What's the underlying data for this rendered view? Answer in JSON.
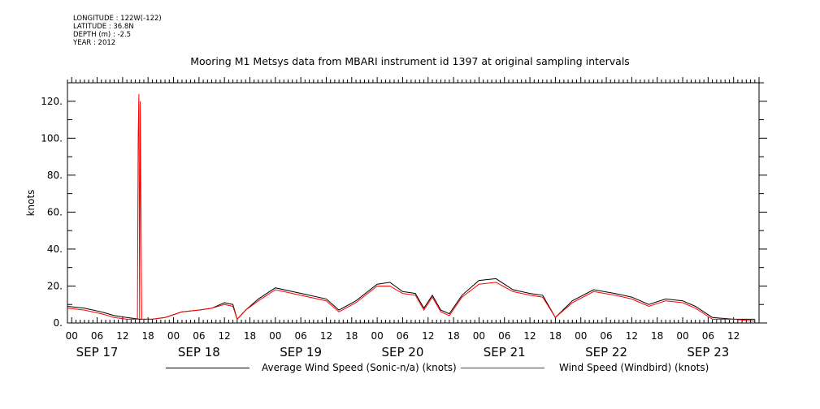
{
  "meta": {
    "longitude": "LONGITUDE : 122W(-122)",
    "latitude": "LATITUDE : 36.8N",
    "depth": "DEPTH (m) : -2.5",
    "year": "YEAR : 2012"
  },
  "colors": {
    "average": "#000000",
    "windbird": "#ff0000"
  },
  "chart_data": {
    "type": "line",
    "title": "Mooring M1 Metsys data from MBARI instrument id 1397 at original sampling intervals",
    "ylabel": "knots",
    "xlabel": "",
    "ylim": [
      0,
      130
    ],
    "xlim": [
      "2012-09-16T23:00",
      "2012-09-23T18:00"
    ],
    "yticks": [
      0,
      20,
      40,
      60,
      80,
      100,
      120
    ],
    "ytick_labels": [
      "0.",
      "20.",
      "40.",
      "60.",
      "80.",
      "100.",
      "120."
    ],
    "hour_labels": [
      "00",
      "06",
      "12",
      "18",
      "00",
      "06",
      "12",
      "18",
      "00",
      "06",
      "12",
      "18",
      "00",
      "06",
      "12",
      "18",
      "00",
      "06",
      "12",
      "18",
      "00",
      "06",
      "12",
      "18",
      "00",
      "06",
      "12"
    ],
    "day_labels": [
      "SEP 17",
      "SEP 18",
      "SEP 19",
      "SEP 20",
      "SEP 21",
      "SEP 22",
      "SEP 23"
    ],
    "grid": false,
    "legend_position": "bottom",
    "series": [
      {
        "name": "Average Wind Speed (Sonic-n/a) (knots)",
        "x": [
          "2012-09-16T23:00",
          "2012-09-17T03:00",
          "2012-09-17T07:00",
          "2012-09-17T10:00",
          "2012-09-17T13:00",
          "2012-09-17T16:00",
          "2012-09-17T19:00",
          "2012-09-17T22:00",
          "2012-09-18T02:00",
          "2012-09-18T06:00",
          "2012-09-18T09:00",
          "2012-09-18T12:00",
          "2012-09-18T14:00",
          "2012-09-18T15:00",
          "2012-09-18T17:00",
          "2012-09-18T20:00",
          "2012-09-19T00:00",
          "2012-09-19T04:00",
          "2012-09-19T08:00",
          "2012-09-19T12:00",
          "2012-09-19T15:00",
          "2012-09-19T19:00",
          "2012-09-20T00:00",
          "2012-09-20T03:00",
          "2012-09-20T06:00",
          "2012-09-20T09:00",
          "2012-09-20T11:00",
          "2012-09-20T13:00",
          "2012-09-20T15:00",
          "2012-09-20T17:00",
          "2012-09-20T20:00",
          "2012-09-21T00:00",
          "2012-09-21T04:00",
          "2012-09-21T08:00",
          "2012-09-21T12:00",
          "2012-09-21T15:00",
          "2012-09-21T18:00",
          "2012-09-21T22:00",
          "2012-09-22T03:00",
          "2012-09-22T08:00",
          "2012-09-22T12:00",
          "2012-09-22T16:00",
          "2012-09-22T20:00",
          "2012-09-23T00:00",
          "2012-09-23T03:00",
          "2012-09-23T07:00",
          "2012-09-23T12:00",
          "2012-09-23T17:00"
        ],
        "y": [
          9,
          8,
          6,
          4,
          3,
          2,
          2,
          3,
          6,
          7,
          8,
          11,
          10,
          2,
          7,
          13,
          19,
          17,
          15,
          13,
          7,
          12,
          21,
          22,
          17,
          16,
          8,
          15,
          7,
          5,
          15,
          23,
          24,
          18,
          16,
          15,
          3,
          12,
          18,
          16,
          14,
          10,
          13,
          12,
          9,
          3,
          2,
          2
        ]
      },
      {
        "name": "Wind Speed (Windbird) (knots)",
        "x": [
          "2012-09-16T23:00",
          "2012-09-17T03:00",
          "2012-09-17T07:00",
          "2012-09-17T10:00",
          "2012-09-17T13:00",
          "2012-09-17T15:30",
          "2012-09-17T15:40",
          "2012-09-17T15:50",
          "2012-09-17T16:00",
          "2012-09-17T16:10",
          "2012-09-17T16:30",
          "2012-09-17T19:00",
          "2012-09-17T22:00",
          "2012-09-18T02:00",
          "2012-09-18T06:00",
          "2012-09-18T09:00",
          "2012-09-18T12:00",
          "2012-09-18T14:00",
          "2012-09-18T15:00",
          "2012-09-18T17:00",
          "2012-09-18T20:00",
          "2012-09-19T00:00",
          "2012-09-19T04:00",
          "2012-09-19T08:00",
          "2012-09-19T12:00",
          "2012-09-19T15:00",
          "2012-09-19T19:00",
          "2012-09-20T00:00",
          "2012-09-20T03:00",
          "2012-09-20T06:00",
          "2012-09-20T09:00",
          "2012-09-20T11:00",
          "2012-09-20T13:00",
          "2012-09-20T15:00",
          "2012-09-20T17:00",
          "2012-09-20T20:00",
          "2012-09-21T00:00",
          "2012-09-21T04:00",
          "2012-09-21T08:00",
          "2012-09-21T12:00",
          "2012-09-21T15:00",
          "2012-09-21T18:00",
          "2012-09-21T22:00",
          "2012-09-22T03:00",
          "2012-09-22T08:00",
          "2012-09-22T12:00",
          "2012-09-22T16:00",
          "2012-09-22T20:00",
          "2012-09-23T00:00",
          "2012-09-23T03:00",
          "2012-09-23T07:00",
          "2012-09-23T12:00",
          "2012-09-23T17:00"
        ],
        "y": [
          8,
          7,
          5,
          3,
          2,
          2,
          100,
          124,
          2,
          120,
          2,
          2,
          3,
          6,
          7,
          8,
          10,
          9,
          2,
          7,
          12,
          18,
          16,
          14,
          12,
          6,
          11,
          20,
          20,
          16,
          15,
          7,
          14,
          6,
          4,
          14,
          21,
          22,
          17,
          15,
          14,
          3,
          11,
          17,
          15,
          13,
          9,
          12,
          11,
          8,
          2,
          2,
          1
        ]
      }
    ]
  }
}
